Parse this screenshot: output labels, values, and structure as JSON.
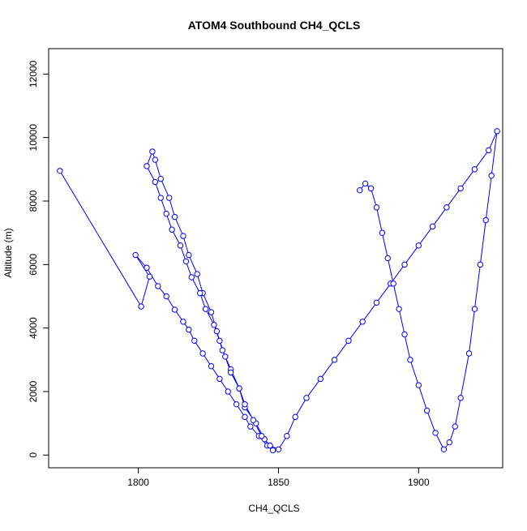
{
  "chart_data": {
    "type": "line",
    "title": "ATOM4 Southbound CH4_QCLS",
    "xlabel": "CH4_QCLS",
    "ylabel": "Altitude (m)",
    "xlim": [
      1768,
      1930
    ],
    "ylim": [
      -400,
      12800
    ],
    "xticks": [
      1800,
      1850,
      1900
    ],
    "yticks": [
      0,
      2000,
      4000,
      6000,
      8000,
      10000,
      12000
    ],
    "xtick_labels": [
      "1800",
      "1850",
      "1900"
    ],
    "ytick_labels": [
      "0",
      "2000",
      "4000",
      "6000",
      "8000",
      "10000",
      "12000"
    ],
    "grid": false,
    "legend": "none",
    "markers": "open-circle",
    "color": "#0000ff",
    "series": [
      {
        "x": [
          1772,
          1801,
          1804,
          1799,
          1803,
          1807,
          1810,
          1813,
          1816,
          1818,
          1820,
          1823,
          1826,
          1829,
          1832,
          1835,
          1838,
          1840,
          1843,
          1846,
          1848,
          1845,
          1842,
          1838,
          1836,
          1833,
          1830,
          1828,
          1826,
          1823,
          1821,
          1818,
          1816,
          1813,
          1811,
          1808,
          1806,
          1805,
          1803,
          1806,
          1808,
          1810,
          1812,
          1815,
          1817,
          1819,
          1822,
          1824,
          1827,
          1829,
          1831,
          1833,
          1836,
          1838,
          1841,
          1844,
          1847,
          1850,
          1853,
          1856,
          1860,
          1865,
          1870,
          1875,
          1880,
          1885,
          1890,
          1895,
          1900,
          1905,
          1910,
          1915,
          1920,
          1925,
          1928,
          1926,
          1924,
          1922,
          1920,
          1918,
          1915,
          1913,
          1911,
          1909,
          1906,
          1903,
          1900,
          1897,
          1895,
          1893,
          1891,
          1889,
          1887,
          1885,
          1883,
          1881,
          1879
        ],
        "y": [
          8950,
          4680,
          5620,
          6300,
          5900,
          5320,
          5000,
          4580,
          4200,
          3950,
          3600,
          3200,
          2800,
          2400,
          2000,
          1600,
          1200,
          900,
          600,
          300,
          150,
          500,
          1000,
          1500,
          2100,
          2700,
          3300,
          3900,
          4500,
          5100,
          5700,
          6300,
          6900,
          7500,
          8100,
          8700,
          9300,
          9560,
          9100,
          8600,
          8100,
          7600,
          7100,
          6600,
          6100,
          5600,
          5100,
          4600,
          4100,
          3600,
          3100,
          2600,
          2100,
          1600,
          1100,
          600,
          300,
          180,
          600,
          1200,
          1800,
          2400,
          3000,
          3600,
          4200,
          4800,
          5400,
          6000,
          6600,
          7200,
          7800,
          8400,
          9000,
          9600,
          10200,
          8800,
          7400,
          6000,
          4600,
          3200,
          1800,
          900,
          400,
          180,
          700,
          1400,
          2200,
          3000,
          3800,
          4600,
          5400,
          6200,
          7000,
          7800,
          8400,
          8550,
          8340
        ]
      }
    ]
  }
}
